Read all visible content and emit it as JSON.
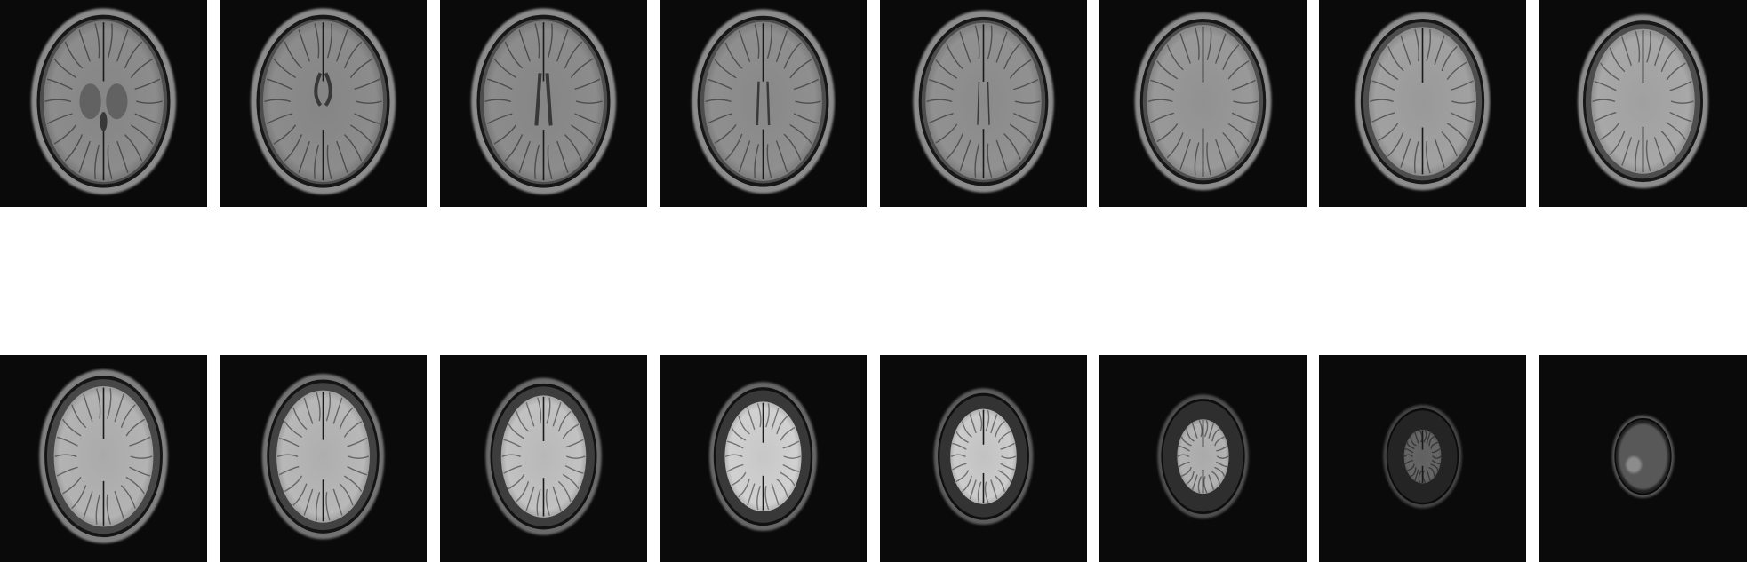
{
  "figure": {
    "rows": [
      {
        "slices": [
          {
            "head_w": 0.7,
            "head_h": 0.9,
            "brain_w": 0.58,
            "brain_h": 0.78,
            "brain_brightness": 0.55,
            "skull_brightness": 0.3,
            "scalp_brightness": 0.55,
            "ventricles": "basal"
          },
          {
            "head_w": 0.7,
            "head_h": 0.9,
            "brain_w": 0.58,
            "brain_h": 0.78,
            "brain_brightness": 0.55,
            "skull_brightness": 0.3,
            "scalp_brightness": 0.55,
            "ventricles": "frontal-horns"
          },
          {
            "head_w": 0.7,
            "head_h": 0.9,
            "brain_w": 0.58,
            "brain_h": 0.78,
            "brain_brightness": 0.55,
            "skull_brightness": 0.3,
            "scalp_brightness": 0.55,
            "ventricles": "bodies"
          },
          {
            "head_w": 0.69,
            "head_h": 0.89,
            "brain_w": 0.57,
            "brain_h": 0.77,
            "brain_brightness": 0.56,
            "skull_brightness": 0.3,
            "scalp_brightness": 0.55,
            "ventricles": "thin"
          },
          {
            "head_w": 0.68,
            "head_h": 0.88,
            "brain_w": 0.56,
            "brain_h": 0.76,
            "brain_brightness": 0.57,
            "skull_brightness": 0.3,
            "scalp_brightness": 0.55,
            "ventricles": "slit"
          },
          {
            "head_w": 0.66,
            "head_h": 0.86,
            "brain_w": 0.54,
            "brain_h": 0.74,
            "brain_brightness": 0.6,
            "skull_brightness": 0.3,
            "scalp_brightness": 0.55,
            "ventricles": "none"
          },
          {
            "head_w": 0.65,
            "head_h": 0.86,
            "brain_w": 0.52,
            "brain_h": 0.72,
            "brain_brightness": 0.63,
            "skull_brightness": 0.3,
            "scalp_brightness": 0.55,
            "ventricles": "none"
          },
          {
            "head_w": 0.63,
            "head_h": 0.84,
            "brain_w": 0.5,
            "brain_h": 0.7,
            "brain_brightness": 0.66,
            "skull_brightness": 0.3,
            "scalp_brightness": 0.55,
            "ventricles": "none"
          }
        ]
      },
      {
        "slices": [
          {
            "head_w": 0.62,
            "head_h": 0.84,
            "brain_w": 0.48,
            "brain_h": 0.68,
            "brain_brightness": 0.7,
            "skull_brightness": 0.28,
            "scalp_brightness": 0.5,
            "ventricles": "none"
          },
          {
            "head_w": 0.59,
            "head_h": 0.8,
            "brain_w": 0.45,
            "brain_h": 0.64,
            "brain_brightness": 0.72,
            "skull_brightness": 0.26,
            "scalp_brightness": 0.45,
            "ventricles": "none"
          },
          {
            "head_w": 0.56,
            "head_h": 0.76,
            "brain_w": 0.41,
            "brain_h": 0.59,
            "brain_brightness": 0.76,
            "skull_brightness": 0.24,
            "scalp_brightness": 0.42,
            "ventricles": "none"
          },
          {
            "head_w": 0.52,
            "head_h": 0.72,
            "brain_w": 0.37,
            "brain_h": 0.53,
            "brain_brightness": 0.82,
            "skull_brightness": 0.22,
            "scalp_brightness": 0.4,
            "ventricles": "none"
          },
          {
            "head_w": 0.48,
            "head_h": 0.66,
            "brain_w": 0.32,
            "brain_h": 0.46,
            "brain_brightness": 0.8,
            "skull_brightness": 0.2,
            "scalp_brightness": 0.36,
            "ventricles": "none"
          },
          {
            "head_w": 0.44,
            "head_h": 0.6,
            "brain_w": 0.25,
            "brain_h": 0.36,
            "brain_brightness": 0.7,
            "skull_brightness": 0.18,
            "scalp_brightness": 0.3,
            "ventricles": "none"
          },
          {
            "head_w": 0.38,
            "head_h": 0.5,
            "brain_w": 0.18,
            "brain_h": 0.26,
            "brain_brightness": 0.4,
            "skull_brightness": 0.14,
            "scalp_brightness": 0.26,
            "ventricles": "none"
          },
          {
            "head_w": 0.3,
            "head_h": 0.4,
            "brain_w": 0.0,
            "brain_h": 0.0,
            "brain_brightness": 0.0,
            "skull_brightness": 0.12,
            "scalp_brightness": 0.32,
            "ventricles": "none"
          }
        ]
      }
    ]
  }
}
